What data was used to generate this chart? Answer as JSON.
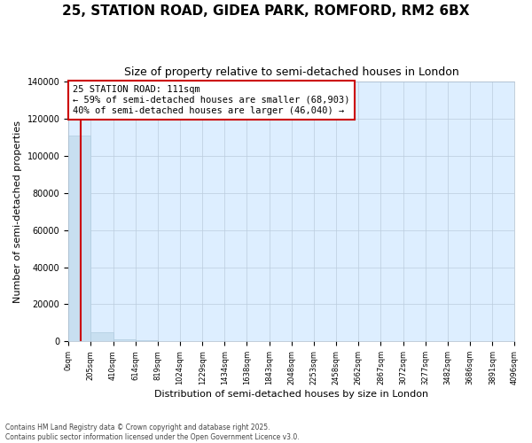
{
  "title": "25, STATION ROAD, GIDEA PARK, ROMFORD, RM2 6BX",
  "subtitle": "Size of property relative to semi-detached houses in London",
  "xlabel": "Distribution of semi-detached houses by size in London",
  "ylabel": "Number of semi-detached properties",
  "property_size": 111,
  "property_label": "25 STATION ROAD: 111sqm",
  "annotation_line1": "← 59% of semi-detached houses are smaller (68,903)",
  "annotation_line2": "40% of semi-detached houses are larger (46,040) →",
  "bin_edges": [
    0,
    205,
    410,
    614,
    819,
    1024,
    1229,
    1434,
    1638,
    1843,
    2048,
    2253,
    2458,
    2662,
    2867,
    3072,
    3277,
    3482,
    3686,
    3891,
    4096
  ],
  "bar_heights": [
    111000,
    5000,
    1200,
    500,
    250,
    130,
    80,
    50,
    35,
    25,
    18,
    13,
    10,
    8,
    6,
    5,
    4,
    3,
    2,
    2
  ],
  "bar_color": "#c8dff0",
  "bar_edge_color": "#b0cce0",
  "plot_bg_color": "#ddeeff",
  "red_line_color": "#cc0000",
  "annotation_box_edge_color": "#cc0000",
  "ylim": [
    0,
    140000
  ],
  "yticks": [
    0,
    20000,
    40000,
    60000,
    80000,
    100000,
    120000,
    140000
  ],
  "background_color": "#ffffff",
  "grid_color": "#bbccdd",
  "footer_line1": "Contains HM Land Registry data © Crown copyright and database right 2025.",
  "footer_line2": "Contains public sector information licensed under the Open Government Licence v3.0."
}
